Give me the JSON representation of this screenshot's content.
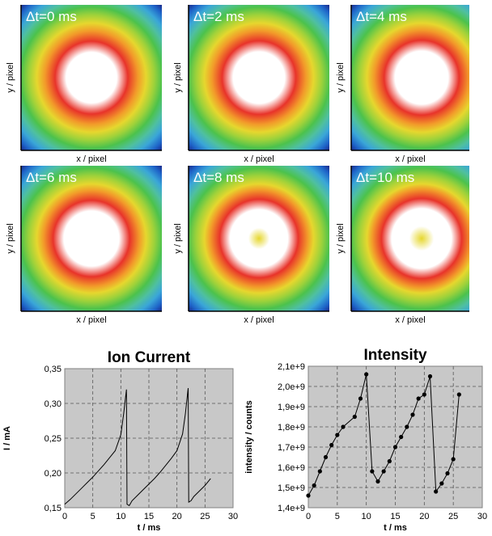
{
  "images": {
    "x_label": "x / pixel",
    "y_label": "y / pixel",
    "panels": [
      {
        "label": "Δt=0 ms",
        "dip": 0.0
      },
      {
        "label": "Δt=2 ms",
        "dip": 0.1
      },
      {
        "label": "Δt=4 ms",
        "dip": 0.25
      },
      {
        "label": "Δt=6 ms",
        "dip": 0.45
      },
      {
        "label": "Δt=8 ms",
        "dip": 0.7
      },
      {
        "label": "Δt=10 ms",
        "dip": 0.9
      }
    ],
    "colors": [
      "#1a2a8a",
      "#1e63c8",
      "#3aa6d8",
      "#4fc0a0",
      "#4cc24c",
      "#9fd23a",
      "#e6d72e",
      "#f29a2a",
      "#e8332a",
      "#ffffff"
    ]
  },
  "chart_data": [
    {
      "type": "line",
      "title": "Ion Current",
      "xlabel": "t / ms",
      "ylabel": "I / mA",
      "xlim": [
        0,
        30
      ],
      "ylim": [
        0.15,
        0.35
      ],
      "xticks": [
        "0",
        "5",
        "10",
        "15",
        "20",
        "25",
        "30"
      ],
      "yticks": [
        "0,15",
        "0,20",
        "0,25",
        "0,30",
        "0,35"
      ],
      "grid": true,
      "series": [
        {
          "x": [
            0,
            1,
            2,
            3,
            4,
            5,
            6,
            7,
            8,
            9,
            10,
            10.5,
            11,
            11.1,
            11.5,
            12,
            13,
            14,
            15,
            16,
            17,
            18,
            19,
            20,
            21,
            21.5,
            22,
            22.1,
            22.5,
            23,
            24,
            25,
            26
          ],
          "y": [
            0.155,
            0.162,
            0.17,
            0.178,
            0.186,
            0.194,
            0.203,
            0.212,
            0.222,
            0.232,
            0.255,
            0.285,
            0.32,
            0.155,
            0.153,
            0.16,
            0.168,
            0.176,
            0.184,
            0.192,
            0.201,
            0.211,
            0.221,
            0.232,
            0.256,
            0.285,
            0.322,
            0.158,
            0.16,
            0.166,
            0.174,
            0.182,
            0.192
          ]
        }
      ]
    },
    {
      "type": "line",
      "title": "Intensity",
      "xlabel": "t / ms",
      "ylabel": "intensity / counts",
      "xlim": [
        0,
        30
      ],
      "ylim": [
        1400000000.0,
        2100000000.0
      ],
      "xticks": [
        "0",
        "5",
        "10",
        "15",
        "20",
        "25",
        "30"
      ],
      "yticks": [
        "1,4e+9",
        "1,5e+9",
        "1,6e+9",
        "1,7e+9",
        "1,8e+9",
        "1,9e+9",
        "2,0e+9",
        "2,1e+9"
      ],
      "grid": true,
      "markers": true,
      "series": [
        {
          "x": [
            0,
            1,
            2,
            3,
            4,
            5,
            6,
            8,
            9,
            10,
            11,
            12,
            13,
            14,
            15,
            16,
            17,
            18,
            19,
            20,
            21,
            22,
            23,
            24,
            25,
            26
          ],
          "y": [
            1460000000.0,
            1510000000.0,
            1580000000.0,
            1650000000.0,
            1710000000.0,
            1760000000.0,
            1800000000.0,
            1850000000.0,
            1940000000.0,
            2060000000.0,
            1580000000.0,
            1530000000.0,
            1580000000.0,
            1630000000.0,
            1700000000.0,
            1750000000.0,
            1800000000.0,
            1860000000.0,
            1940000000.0,
            1960000000.0,
            2050000000.0,
            1480000000.0,
            1520000000.0,
            1570000000.0,
            1640000000.0,
            1960000000.0
          ]
        }
      ]
    }
  ]
}
